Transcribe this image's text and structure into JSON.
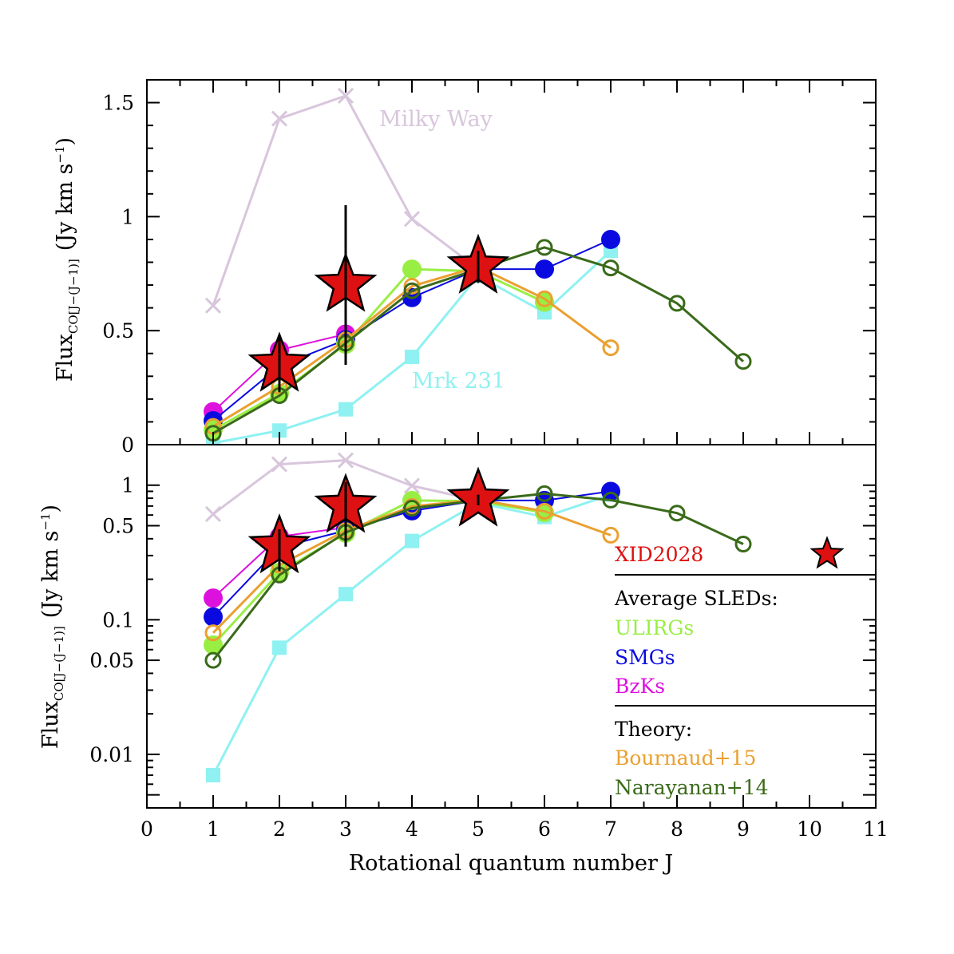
{
  "chart_data": [
    {
      "panel": "top",
      "type": "line",
      "scale": "linear",
      "ylabel_main": "Flux",
      "ylabel_sub": "CO[J−(J−1)]",
      "ylabel_unit": "(Jy km s",
      "ylabel_unit_exp": "−1",
      "ylabel_close": ")",
      "xlim": [
        0,
        11
      ],
      "ylim": [
        0,
        1.6
      ],
      "yticks": [
        0,
        0.5,
        1,
        1.5
      ],
      "ytick_labels": [
        "0",
        "0.5",
        "1",
        "1.5"
      ],
      "annotations": [
        {
          "text": "Milky Way",
          "color": "#d8c6dc"
        },
        {
          "text": "Mrk 231",
          "color": "#8ff1f1"
        }
      ]
    },
    {
      "panel": "bottom",
      "type": "line",
      "scale": "log",
      "ylabel_main": "Flux",
      "ylabel_sub": "CO[J−(J−1)]",
      "ylabel_unit": "(Jy km s",
      "ylabel_unit_exp": "−1",
      "ylabel_close": ")",
      "xlabel": "Rotational quantum number J",
      "xlim": [
        0,
        11
      ],
      "ylim": [
        0.004,
        2.0
      ],
      "xticks": [
        0,
        1,
        2,
        3,
        4,
        5,
        6,
        7,
        8,
        9,
        10,
        11
      ],
      "xtick_labels": [
        "0",
        "1",
        "2",
        "3",
        "4",
        "5",
        "6",
        "7",
        "8",
        "9",
        "10",
        "11"
      ],
      "yticks": [
        0.01,
        0.05,
        0.1,
        0.5,
        1
      ],
      "ytick_labels": [
        "0.01",
        "0.05",
        "0.1",
        "0.5",
        "1"
      ],
      "legend": {
        "placement": "bottom-right",
        "source_label": "XID2028",
        "source_color": "#dd1111",
        "avg_header": "Average SLEDs:",
        "theory_header": "Theory:",
        "entries": [
          {
            "name": "ULIRGs",
            "color": "#99ee44"
          },
          {
            "name": "SMGs",
            "color": "#0a0ae0"
          },
          {
            "name": "BzKs",
            "color": "#dd11dd"
          },
          {
            "name": "Bournaud+15",
            "color": "#eaa030"
          },
          {
            "name": "Narayanan+14",
            "color": "#3a6a1a"
          }
        ]
      }
    }
  ],
  "series": [
    {
      "name": "Milky Way",
      "color": "#d8c6dc",
      "marker": "cross",
      "x": [
        1,
        2,
        3,
        4,
        5
      ],
      "y": [
        0.61,
        1.43,
        1.53,
        0.99,
        0.77
      ]
    },
    {
      "name": "Mrk 231",
      "color": "#8ff1f1",
      "marker": "square",
      "x": [
        1,
        2,
        3,
        4,
        5,
        6,
        7
      ],
      "y": [
        0.007,
        0.062,
        0.155,
        0.385,
        0.74,
        0.58,
        0.85
      ]
    },
    {
      "name": "BzKs",
      "color": "#dd11dd",
      "marker": "filled-circle",
      "x": [
        1,
        2,
        3
      ],
      "y": [
        0.145,
        0.415,
        0.485
      ]
    },
    {
      "name": "SMGs",
      "color": "#0a0ae0",
      "marker": "filled-circle",
      "x": [
        1,
        2,
        3,
        4,
        5,
        6,
        7
      ],
      "y": [
        0.105,
        0.345,
        0.46,
        0.645,
        0.77,
        0.77,
        0.9
      ]
    },
    {
      "name": "ULIRGs",
      "color": "#99ee44",
      "marker": "filled-circle",
      "x": [
        1,
        2,
        3,
        4,
        5,
        6
      ],
      "y": [
        0.065,
        0.225,
        0.44,
        0.77,
        0.76,
        0.625
      ]
    },
    {
      "name": "Bournaud+15",
      "color": "#eaa030",
      "marker": "open-circle",
      "x": [
        1,
        2,
        3,
        4,
        5,
        6,
        7
      ],
      "y": [
        0.08,
        0.255,
        0.46,
        0.695,
        0.78,
        0.64,
        0.425
      ]
    },
    {
      "name": "Narayanan+14",
      "color": "#3a6a1a",
      "marker": "open-circle",
      "x": [
        1,
        2,
        3,
        4,
        5,
        6,
        7,
        8,
        9
      ],
      "y": [
        0.05,
        0.215,
        0.445,
        0.675,
        0.77,
        0.865,
        0.775,
        0.62,
        0.365
      ]
    },
    {
      "name": "XID2028",
      "color": "#dd1111",
      "marker": "star",
      "x": [
        2,
        3,
        5
      ],
      "y": [
        0.35,
        0.7,
        0.78
      ],
      "err_low": [
        0.12,
        0.35,
        0.07
      ],
      "err_high": [
        0.12,
        0.35,
        0.07
      ]
    }
  ]
}
